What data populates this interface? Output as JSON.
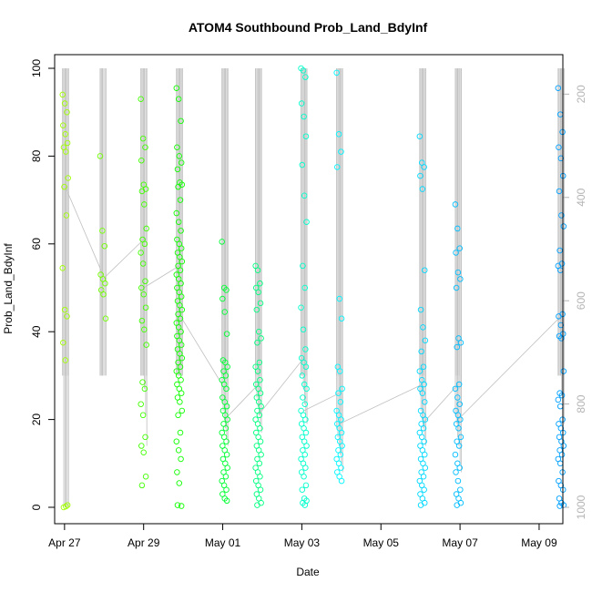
{
  "chart_data": {
    "type": "scatter",
    "title": "ATOM4 Southbound Prob_Land_BdyInf",
    "xlabel": "Date",
    "ylabel": "Prob_Land_BdyInf",
    "ylim": [
      0,
      100
    ],
    "y2lim": [
      1000,
      150
    ],
    "xlim": [
      -0.25,
      12.6
    ],
    "x_tick_labels": [
      "Apr 27",
      "Apr 29",
      "May 01",
      "May 03",
      "May 05",
      "May 07",
      "May 09"
    ],
    "x_tick_values": [
      0,
      2,
      4,
      6,
      8,
      10,
      12
    ],
    "y_tick_values": [
      0,
      20,
      40,
      60,
      80,
      100
    ],
    "y2_tick_values": [
      200,
      400,
      600,
      800,
      1000
    ],
    "x_unit": "days since Apr 27 00:00",
    "series_color_range": [
      "#a0ff00",
      "#00ff00",
      "#00ffff",
      "#00a0ff"
    ],
    "line_color": "#c0c0c0",
    "clusters": [
      {
        "x": 0.02,
        "values": [
          94,
          92,
          90,
          87,
          85,
          83,
          82,
          81,
          75,
          73,
          66.5,
          54.5,
          45,
          43.5,
          37.5,
          33.5,
          0.5,
          0,
          0.2
        ]
      },
      {
        "x": 0.97,
        "values": [
          80,
          63,
          59.5,
          53,
          52,
          51,
          49.5,
          48.5,
          43
        ]
      },
      {
        "x": 2.0,
        "values": [
          93,
          84,
          82,
          79,
          73.5,
          72.5,
          72,
          69,
          63.5,
          61,
          60,
          58,
          55.5,
          51.5,
          50,
          48.5,
          45.5,
          42.5,
          40.5,
          37,
          28.5,
          27,
          23.5,
          21,
          16,
          14,
          12.5,
          7,
          5
        ]
      },
      {
        "x": 2.9,
        "values": [
          95.5,
          93,
          88,
          82,
          80,
          78.5,
          77,
          74,
          73.5,
          73,
          70,
          67,
          65,
          63,
          61,
          60,
          59,
          58,
          57,
          56,
          55,
          54,
          53,
          52,
          51,
          50,
          49,
          48,
          47,
          46,
          45,
          44,
          43,
          42,
          41,
          40,
          39,
          38,
          37,
          36,
          35,
          34,
          33,
          32,
          31,
          30,
          29,
          28,
          27,
          26,
          25,
          24,
          22,
          21,
          17,
          15,
          13,
          11,
          8,
          5.5,
          0.3,
          0.5
        ]
      },
      {
        "x": 4.05,
        "values": [
          60.5,
          50,
          49.5,
          47.5,
          44.5,
          39.5,
          33.5,
          33,
          32,
          31,
          30,
          29,
          28,
          27,
          25,
          24,
          23,
          22,
          21,
          20,
          19,
          18,
          17,
          16,
          15,
          14,
          13,
          12,
          11,
          10,
          9,
          8,
          7,
          6,
          5,
          4,
          3,
          2,
          1.5
        ]
      },
      {
        "x": 4.9,
        "values": [
          55,
          54,
          51,
          50,
          49,
          46.5,
          45,
          40,
          38.5,
          37.5,
          33,
          32,
          31,
          29,
          28,
          27,
          26,
          25,
          24,
          23,
          22,
          21,
          20,
          19,
          18,
          17,
          16,
          15,
          14,
          13,
          12,
          11,
          10,
          9,
          8,
          7,
          6,
          5,
          4,
          3,
          2,
          1,
          0.5
        ]
      },
      {
        "x": 6.05,
        "values": [
          100,
          99.5,
          98,
          92,
          89,
          84.5,
          78,
          71,
          65,
          55,
          50,
          45.5,
          40.5,
          36,
          34,
          33,
          32,
          30,
          28,
          27,
          25,
          23.5,
          22,
          21,
          20,
          19,
          18,
          17,
          16,
          15,
          14,
          13,
          12,
          11,
          10,
          9,
          8,
          7,
          5,
          4,
          2,
          1.5,
          1,
          0.5
        ]
      },
      {
        "x": 6.95,
        "values": [
          99,
          85,
          81,
          77.5,
          47.5,
          43,
          32,
          31,
          27,
          26,
          24,
          22,
          21,
          20,
          19,
          18,
          17,
          16,
          15,
          14,
          13,
          12,
          11,
          10,
          9,
          8,
          7,
          6
        ]
      },
      {
        "x": 9.05,
        "values": [
          84.5,
          78.5,
          77.5,
          75.5,
          72.5,
          54,
          45,
          41,
          38,
          35.5,
          32,
          31,
          29,
          28,
          27,
          26,
          24,
          22,
          21,
          20,
          19,
          18,
          17,
          16,
          15,
          14,
          13,
          12,
          11,
          10,
          9,
          8,
          7,
          6,
          5,
          4,
          3,
          2,
          1,
          0.5
        ]
      },
      {
        "x": 9.95,
        "values": [
          69,
          63.5,
          59,
          58,
          53.5,
          52,
          50,
          38.5,
          37.5,
          36.5,
          28,
          27,
          25,
          23.5,
          22,
          21,
          20,
          19,
          18,
          16,
          15,
          14,
          12,
          10,
          9,
          8,
          6,
          4,
          3,
          2,
          1,
          0.5
        ]
      },
      {
        "x": 12.55,
        "values": [
          95.5,
          89.5,
          85.5,
          82,
          79.5,
          75.5,
          72,
          66.5,
          64,
          58.5,
          55.5,
          55,
          54,
          44,
          43.5,
          41.5,
          39.5,
          39,
          38.5,
          31,
          26,
          25.5,
          24.5,
          23,
          20,
          19,
          18,
          17,
          16,
          15,
          14,
          13,
          12,
          11,
          10,
          8,
          6,
          5,
          4,
          2,
          1,
          0.5,
          0.3
        ]
      }
    ]
  }
}
